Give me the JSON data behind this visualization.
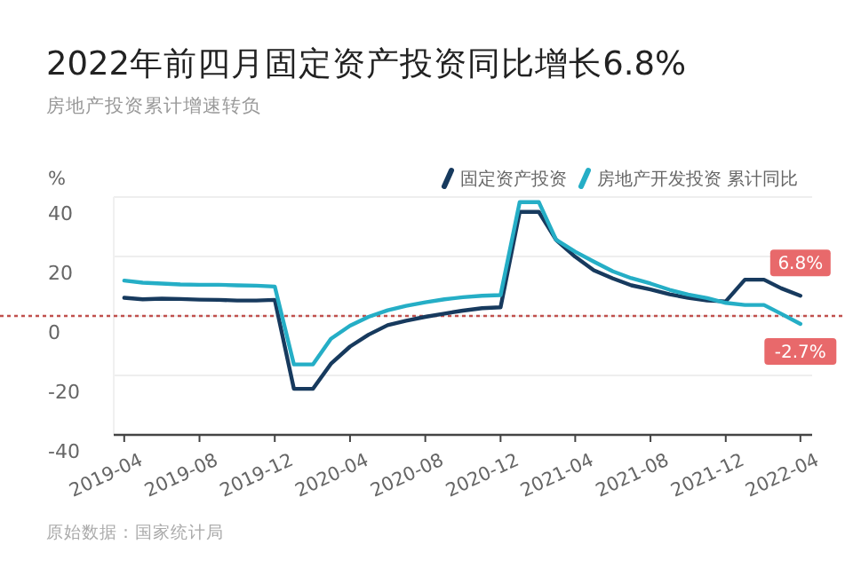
{
  "chart_data": {
    "type": "line",
    "title": "2022年前四月固定资产投资同比增长6.8%",
    "subtitle": "房地产投资累计增速转负",
    "ylabel": "%",
    "x": [
      "2019-04",
      "2019-05",
      "2019-06",
      "2019-07",
      "2019-08",
      "2019-09",
      "2019-10",
      "2019-11",
      "2019-12",
      "2020-01",
      "2020-02",
      "2020-03",
      "2020-04",
      "2020-05",
      "2020-06",
      "2020-07",
      "2020-08",
      "2020-09",
      "2020-10",
      "2020-11",
      "2020-12",
      "2021-01",
      "2021-02",
      "2021-03",
      "2021-04",
      "2021-05",
      "2021-06",
      "2021-07",
      "2021-08",
      "2021-09",
      "2021-10",
      "2021-11",
      "2021-12",
      "2022-01",
      "2022-02",
      "2022-03",
      "2022-04"
    ],
    "series": [
      {
        "name": "固定资产投资",
        "color": "#173a5e",
        "values": [
          6.1,
          5.6,
          5.8,
          5.7,
          5.5,
          5.4,
          5.2,
          5.2,
          5.4,
          -24.5,
          -24.5,
          -16.1,
          -10.3,
          -6.3,
          -3.1,
          -1.6,
          -0.3,
          0.8,
          1.8,
          2.6,
          2.9,
          35.0,
          35.0,
          25.6,
          19.9,
          15.4,
          12.6,
          10.3,
          8.9,
          7.3,
          6.1,
          5.2,
          4.9,
          12.2,
          12.2,
          9.3,
          6.8
        ],
        "value_labels": [
          null,
          null,
          null,
          null,
          null,
          null,
          null,
          null,
          null,
          null,
          null,
          null,
          null,
          null,
          null,
          null,
          null,
          null,
          null,
          null,
          null,
          null,
          null,
          null,
          null,
          null,
          null,
          null,
          null,
          null,
          null,
          null,
          null,
          null,
          null,
          null,
          "6.8%"
        ]
      },
      {
        "name": "房地产开发投资 累计同比",
        "color": "#25aec6",
        "values": [
          11.9,
          11.2,
          10.9,
          10.6,
          10.5,
          10.5,
          10.3,
          10.2,
          9.9,
          -16.3,
          -16.3,
          -7.7,
          -3.3,
          -0.3,
          1.9,
          3.4,
          4.6,
          5.6,
          6.3,
          6.8,
          7.0,
          38.3,
          38.3,
          25.6,
          21.6,
          18.3,
          15.0,
          12.7,
          10.9,
          8.8,
          7.2,
          6.0,
          4.4,
          3.7,
          3.7,
          0.7,
          -2.7
        ],
        "value_labels": [
          null,
          null,
          null,
          null,
          null,
          null,
          null,
          null,
          null,
          null,
          null,
          null,
          null,
          null,
          null,
          null,
          null,
          null,
          null,
          null,
          null,
          null,
          null,
          null,
          null,
          null,
          null,
          null,
          null,
          null,
          null,
          null,
          null,
          null,
          null,
          null,
          "-2.7%"
        ]
      }
    ],
    "xlim": [
      "2019-03-15",
      "2022-04-20"
    ],
    "xticks": [
      "2019-04",
      "2019-08",
      "2019-12",
      "2020-04",
      "2020-08",
      "2020-12",
      "2021-04",
      "2021-08",
      "2021-12",
      "2022-04"
    ],
    "ylim": [
      -40,
      40
    ],
    "yticks": [
      -40,
      -20,
      0,
      20,
      40
    ],
    "grid": "y",
    "legend": "top right",
    "marker": "none",
    "line_style": "solid",
    "ref_lines": [
      {
        "axis": "y",
        "value": 0,
        "color": "#c0504d",
        "line_style": "dotted"
      }
    ],
    "annotations": [
      "原始数据：国家统计局"
    ]
  }
}
